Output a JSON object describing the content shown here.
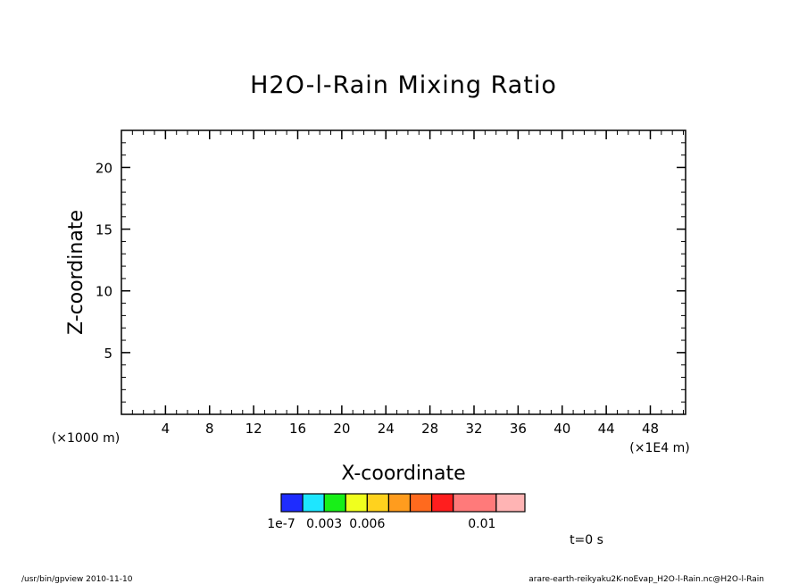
{
  "chart_data": {
    "type": "heatmap",
    "title": "H2O-l-Rain Mixing Ratio",
    "xlabel": "X-coordinate",
    "ylabel": "Z-coordinate",
    "x_unit": "(×1E4 m)",
    "y_unit": "(×1000 m)",
    "xlim": [
      0,
      51.2
    ],
    "ylim": [
      0,
      23
    ],
    "x_ticks": [
      4,
      8,
      12,
      16,
      20,
      24,
      28,
      32,
      36,
      40,
      44,
      48
    ],
    "y_ticks": [
      5,
      10,
      15,
      20
    ],
    "x_tick_labels": [
      "4",
      "8",
      "12",
      "16",
      "20",
      "24",
      "28",
      "32",
      "36",
      "40",
      "44",
      "48"
    ],
    "y_tick_labels": [
      "5",
      "10",
      "15",
      "20"
    ],
    "x_minor_step": 1,
    "y_minor_step": 1,
    "grid": false,
    "values": [],
    "colorbar": {
      "colors": [
        "#1e2cff",
        "#1ee6ff",
        "#18ef18",
        "#f0ff1e",
        "#ffd21e",
        "#ff9c1e",
        "#ff6a1e",
        "#ff1e1e",
        "#ff7a7a",
        "#ffb4b4"
      ],
      "boundaries": [
        1e-07,
        0.0015,
        0.003,
        0.0045,
        0.006,
        0.0075,
        0.009,
        0.0105,
        0.012,
        0.015,
        0.017
      ],
      "labels": [
        {
          "text": "1e-7",
          "value": 1e-07
        },
        {
          "text": "0.003",
          "value": 0.003
        },
        {
          "text": "0.006",
          "value": 0.006
        },
        {
          "text": "0.01",
          "value": 0.014
        }
      ]
    }
  },
  "time_label": "t=0 s",
  "footer_left": "/usr/bin/gpview   2010-11-10",
  "footer_right": "arare-earth-reikyaku2K-noEvap_H2O-l-Rain.nc@H2O-l-Rain"
}
